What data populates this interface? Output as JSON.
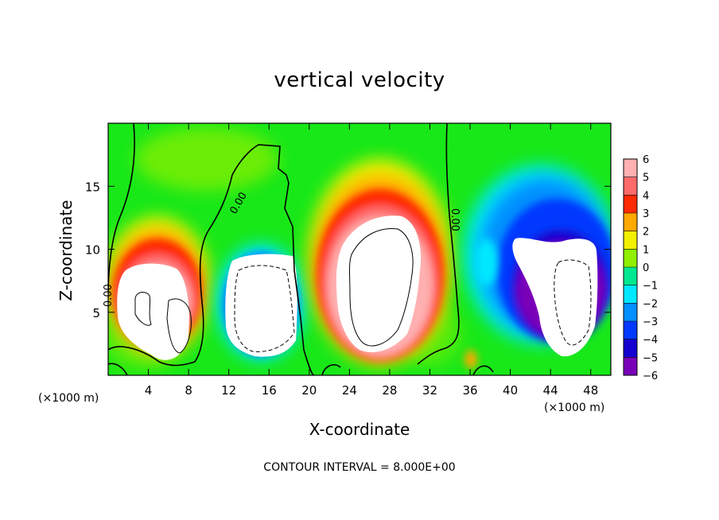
{
  "chart_data": {
    "type": "heatmap",
    "title": "vertical velocity",
    "xlabel": "X-coordinate",
    "ylabel": "Z-coordinate",
    "x_unit_left": "(×1000 m)",
    "x_unit_right": "(×1000 m)",
    "footer": "CONTOUR INTERVAL = 8.000E+00",
    "xlim": [
      0,
      50
    ],
    "ylim": [
      0,
      20
    ],
    "x_ticks": [
      4,
      8,
      12,
      16,
      20,
      24,
      28,
      32,
      36,
      40,
      44,
      48
    ],
    "y_ticks": [
      5,
      10,
      15
    ],
    "colorbar": {
      "range": [
        -6,
        6
      ],
      "ticks": [
        6,
        5,
        4,
        3,
        2,
        1,
        0,
        -1,
        -2,
        -3,
        -4,
        -5,
        -6
      ],
      "colors": {
        "c_m6": "#7a00b8",
        "c_m5": "#1400d0",
        "c_m4": "#0038ff",
        "c_m3": "#0090ff",
        "c_m2": "#00e8ff",
        "c_m1": "#00e890",
        "c_0": "#18e818",
        "c_1": "#90f000",
        "c_2": "#f0f000",
        "c_3": "#ffa800",
        "c_4": "#ff2a00",
        "c_5": "#ff6a6a",
        "c_6": "#ffb0b0"
      }
    },
    "contour_labels": [
      "0.00",
      "0.00",
      "0.00"
    ],
    "cells": [
      {
        "kind": "updraft",
        "x_center": 5.5,
        "z_center": 6
      },
      {
        "kind": "downdraft",
        "x_center": 15,
        "z_center": 6
      },
      {
        "kind": "updraft",
        "x_center": 27,
        "z_center": 8
      },
      {
        "kind": "downdraft",
        "x_center": 46,
        "z_center": 7
      }
    ]
  }
}
